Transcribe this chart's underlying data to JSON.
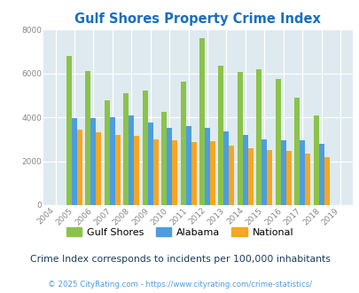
{
  "title": "Gulf Shores Property Crime Index",
  "years": [
    2004,
    2005,
    2006,
    2007,
    2008,
    2009,
    2010,
    2011,
    2012,
    2013,
    2014,
    2015,
    2016,
    2017,
    2018,
    2019
  ],
  "gulf_shores": [
    null,
    6800,
    6100,
    4750,
    5100,
    5200,
    4250,
    5600,
    7600,
    6350,
    6050,
    6200,
    5750,
    4900,
    4100,
    null
  ],
  "alabama": [
    null,
    3950,
    3950,
    4000,
    4100,
    3750,
    3500,
    3600,
    3500,
    3350,
    3200,
    3000,
    2950,
    2950,
    2800,
    null
  ],
  "national": [
    null,
    3450,
    3300,
    3200,
    3150,
    3000,
    2950,
    2850,
    2900,
    2700,
    2600,
    2500,
    2450,
    2350,
    2200,
    null
  ],
  "gulf_shores_color": "#8bc34a",
  "alabama_color": "#4d9de0",
  "national_color": "#f5a623",
  "bg_color": "#deeaf0",
  "ylim": [
    0,
    8000
  ],
  "yticks": [
    0,
    2000,
    4000,
    6000,
    8000
  ],
  "subtitle": "Crime Index corresponds to incidents per 100,000 inhabitants",
  "footer": "© 2025 CityRating.com - https://www.cityrating.com/crime-statistics/",
  "title_color": "#1a6fbd",
  "subtitle_color": "#1a3a5c",
  "footer_color": "#4d9de0"
}
